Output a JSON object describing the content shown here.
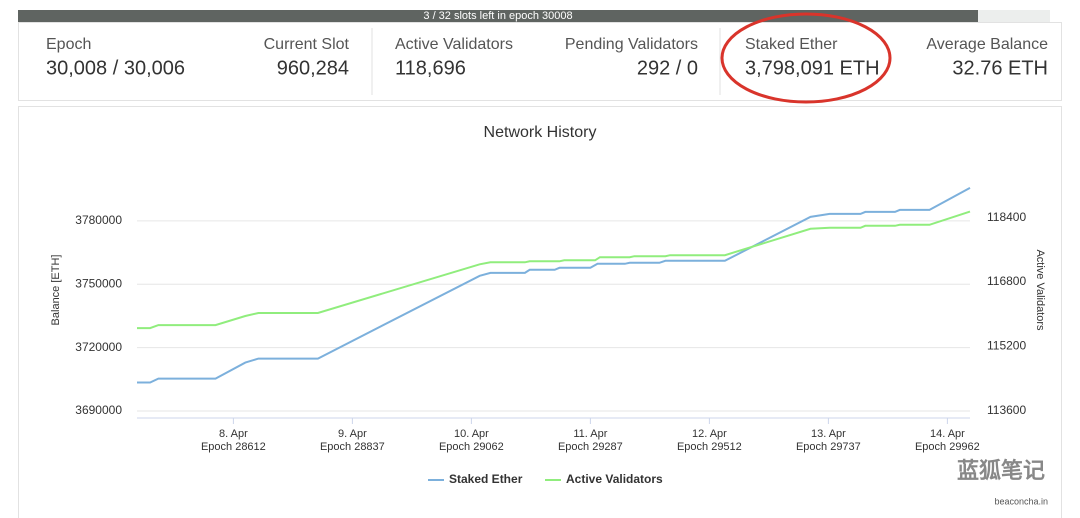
{
  "banner": "3 / 32 slots left in epoch 30008",
  "stats": [
    {
      "label": "Epoch",
      "value": "30,008 / 30,006"
    },
    {
      "label": "Current Slot",
      "value": "960,284"
    },
    {
      "label": "Active Validators",
      "value": "118,696"
    },
    {
      "label": "Pending Validators",
      "value": "292 / 0"
    },
    {
      "label": "Staked Ether",
      "value": "3,798,091 ETH"
    },
    {
      "label": "Average Balance",
      "value": "32.76 ETH"
    }
  ],
  "chart_data": {
    "type": "line",
    "title": "Network History",
    "ylabel": "Balance [ETH]",
    "y2label": "Active Validators",
    "xlim": [
      7.19,
      14.19
    ],
    "xticks": [
      {
        "value": 8,
        "label": "8. Apr"
      },
      {
        "value": 9,
        "label": "9. Apr"
      },
      {
        "value": 10,
        "label": "10. Apr"
      },
      {
        "value": 11,
        "label": "11. Apr"
      },
      {
        "value": 12,
        "label": "12. Apr"
      },
      {
        "value": 13,
        "label": "13. Apr"
      },
      {
        "value": 14,
        "label": "14. Apr"
      }
    ],
    "xtick_sublabels": [
      "Epoch 28612",
      "Epoch 28837",
      "Epoch 29062",
      "Epoch 29287",
      "Epoch 29512",
      "Epoch 29737",
      "Epoch 29962"
    ],
    "ylim": [
      3686700,
      3807400
    ],
    "yticks": [
      3690000,
      3720000,
      3750000,
      3780000
    ],
    "y2lim": [
      113420,
      119760
    ],
    "y2ticks": [
      113600,
      115200,
      116800,
      118400
    ],
    "grid": true,
    "legend": "bottom",
    "series": [
      {
        "name": "Staked Ether",
        "color": "#7cb0dc",
        "x": [
          7.19,
          7.3,
          7.37,
          7.85,
          8.1,
          8.21,
          8.71,
          10.07,
          10.16,
          10.45,
          10.49,
          10.7,
          10.74,
          11.0,
          11.06,
          11.29,
          11.33,
          11.58,
          11.63,
          12.13,
          12.85,
          13.01,
          13.27,
          13.31,
          13.56,
          13.6,
          13.85,
          14.19
        ],
        "values": [
          3703500,
          3703500,
          3705350,
          3705350,
          3712900,
          3714800,
          3714800,
          3754000,
          3755400,
          3755400,
          3756850,
          3756850,
          3757800,
          3757800,
          3759700,
          3759700,
          3760150,
          3760150,
          3761100,
          3761100,
          3781900,
          3783300,
          3783300,
          3784250,
          3784250,
          3785200,
          3785200,
          3795600
        ]
      },
      {
        "name": "Active Validators",
        "color": "#90ed7d",
        "axis": "y2",
        "x": [
          7.19,
          7.3,
          7.37,
          7.85,
          8.1,
          8.21,
          8.71,
          10.07,
          10.16,
          10.45,
          10.49,
          10.74,
          10.78,
          11.04,
          11.08,
          11.33,
          11.37,
          11.63,
          11.67,
          12.13,
          12.85,
          13.01,
          13.27,
          13.31,
          13.56,
          13.6,
          13.85,
          14.19
        ],
        "values": [
          115654,
          115654,
          115729,
          115729,
          115956,
          116031,
          116031,
          117241,
          117291,
          117291,
          117317,
          117317,
          117342,
          117342,
          117417,
          117417,
          117443,
          117443,
          117468,
          117468,
          118123,
          118148,
          118148,
          118198,
          118198,
          118224,
          118224,
          118551
        ]
      }
    ]
  },
  "source": "beaconcha.in",
  "watermark": "蓝狐笔记"
}
